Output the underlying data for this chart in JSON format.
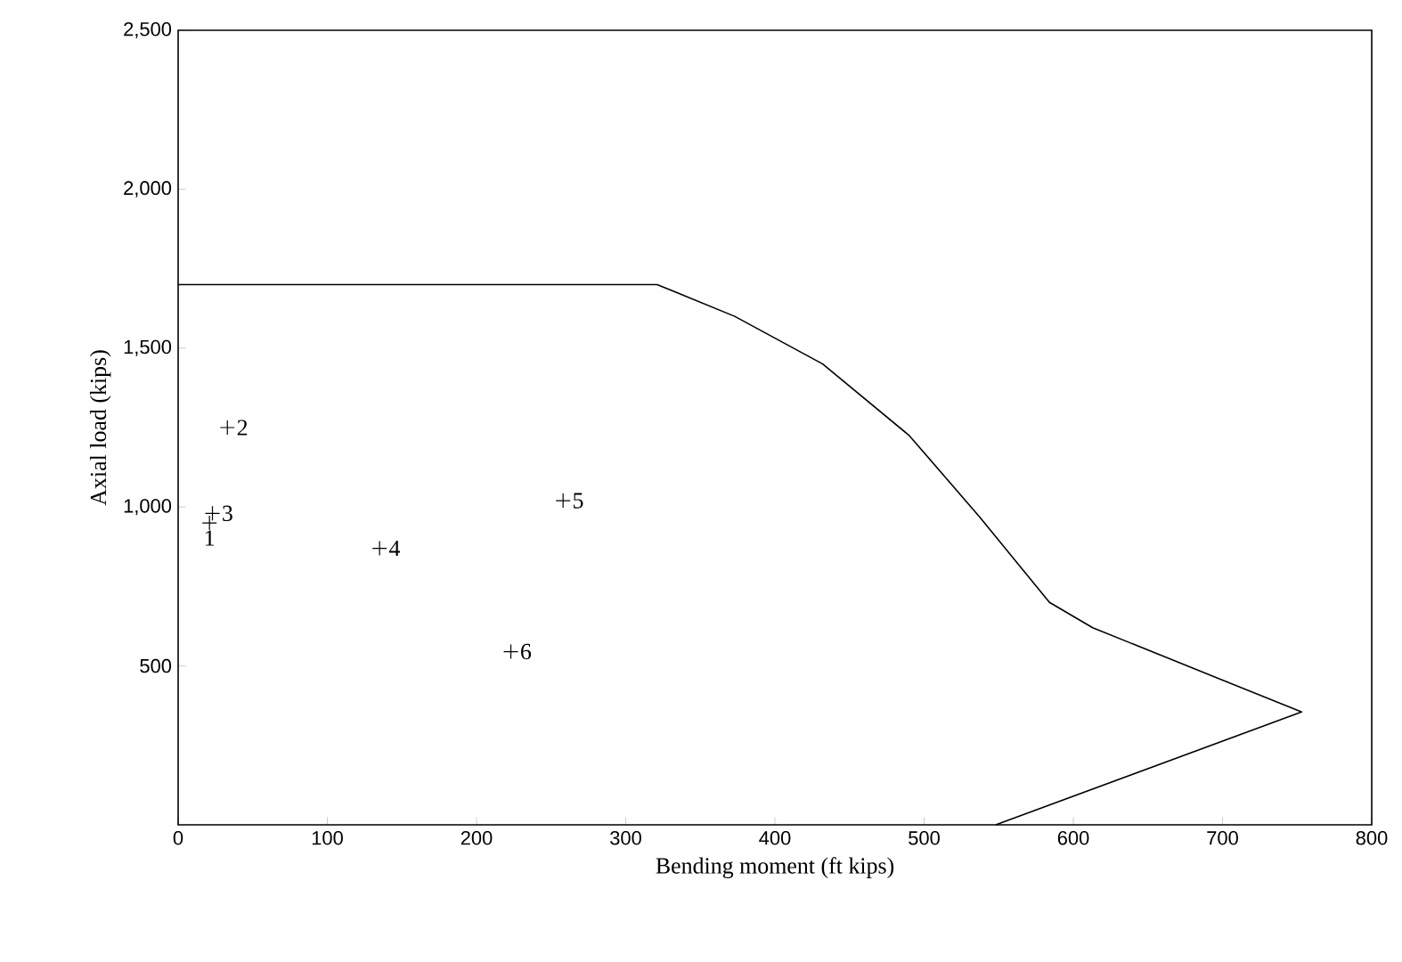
{
  "chart_data": {
    "type": "line",
    "xlabel": "Bending moment (ft kips)",
    "ylabel": "Axial load (kips)",
    "xlim": [
      0,
      800
    ],
    "ylim": [
      0,
      2500
    ],
    "xticks": [
      0,
      100,
      200,
      300,
      400,
      500,
      600,
      700,
      800
    ],
    "yticks": [
      {
        "value": 500,
        "label": "500"
      },
      {
        "value": 1000,
        "label": "1,000"
      },
      {
        "value": 1500,
        "label": "1,500"
      },
      {
        "value": 2000,
        "label": "2,000"
      },
      {
        "value": 2500,
        "label": "2,500"
      }
    ],
    "grid": false,
    "series": [
      {
        "color": "#000000",
        "marker": "none",
        "line_style": "solid",
        "x": [
          0,
          321,
          373,
          432,
          490,
          537,
          584,
          613,
          753,
          548
        ],
        "values": [
          1700,
          1700,
          1600,
          1450,
          1225,
          970,
          700,
          620,
          355,
          0
        ]
      },
      {
        "type": "scatter",
        "color": "#000000",
        "marker": "cross",
        "x": [
          21,
          33,
          23,
          135,
          258,
          223
        ],
        "values": [
          950,
          1250,
          980,
          870,
          1020,
          545
        ]
      }
    ],
    "annotations": [
      {
        "text": "1",
        "x": 21,
        "y": 950
      },
      {
        "text": "2",
        "x": 33,
        "y": 1250
      },
      {
        "text": "3",
        "x": 23,
        "y": 980
      },
      {
        "text": "4",
        "x": 135,
        "y": 870
      },
      {
        "text": "5",
        "x": 258,
        "y": 1020
      },
      {
        "text": "6",
        "x": 223,
        "y": 545
      }
    ]
  }
}
